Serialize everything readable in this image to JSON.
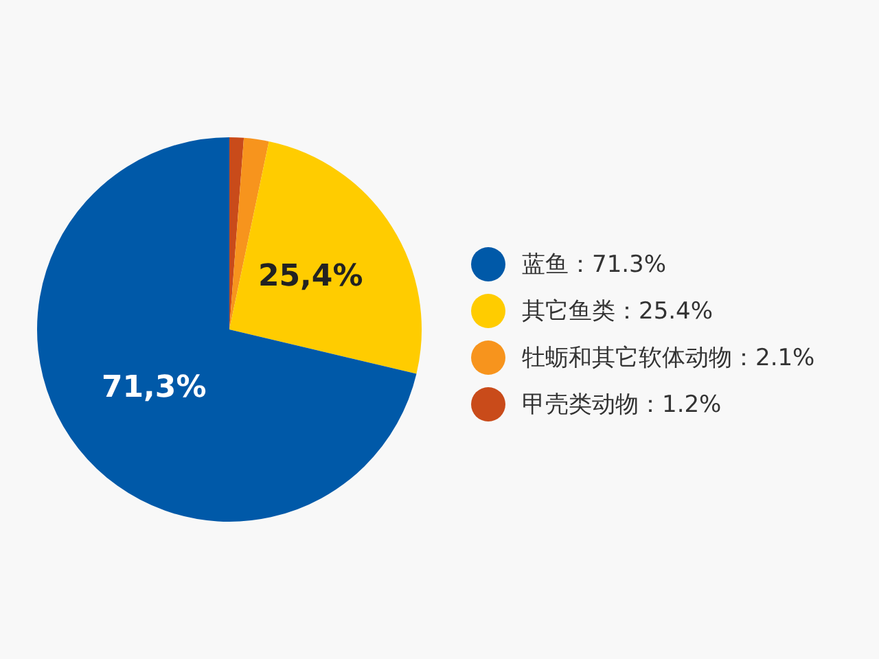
{
  "chart_data": {
    "type": "pie",
    "categories": [
      "蓝鱼：71.3%",
      "其它鱼类：25.4%",
      "牡蛎和其它软体动物：2.1%",
      "甲壳类动物：1.2%"
    ],
    "values": [
      71.3,
      25.4,
      2.1,
      1.2
    ],
    "colors": [
      "#0059a8",
      "#ffcc00",
      "#f7941d",
      "#c94b1a"
    ],
    "value_labels": [
      "71,3%",
      "25,4%",
      null,
      null
    ],
    "legend": "right"
  }
}
